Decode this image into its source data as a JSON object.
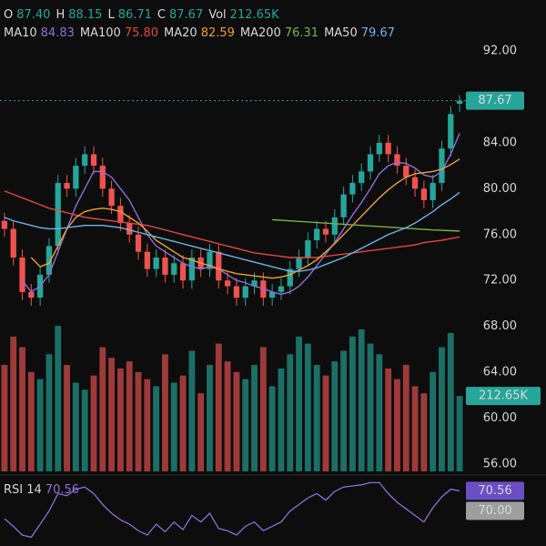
{
  "header": {
    "ohlc": [
      {
        "name": "O",
        "value": "87.40"
      },
      {
        "name": "H",
        "value": "88.15"
      },
      {
        "name": "L",
        "value": "86.71"
      },
      {
        "name": "C",
        "value": "87.67"
      },
      {
        "name": "Vol",
        "value": "212.65K"
      }
    ]
  },
  "chart_data": {
    "type": "candlestick",
    "up_color": "#26a69a",
    "down_color": "#ef5350",
    "volume_up_color": "#1b6f66",
    "volume_down_color": "#9e3a3a",
    "open": [
      77.2,
      76.5,
      74,
      71,
      70.5,
      72.5,
      75,
      80.5,
      80,
      82,
      83,
      82,
      80,
      78.5,
      77,
      76,
      74.5,
      73,
      74,
      72.5,
      73.5,
      72,
      74,
      73,
      74.5,
      72,
      71.5,
      70.5,
      71.5,
      72,
      70.5,
      71,
      71.5,
      73,
      74,
      75.5,
      76.5,
      76,
      77.5,
      79.5,
      80.5,
      81.5,
      83,
      84,
      83,
      82,
      81,
      80,
      79,
      80.5,
      83.5,
      87.4
    ],
    "high": [
      77.9,
      77.2,
      74.7,
      71.7,
      73.2,
      75.7,
      81.2,
      81.2,
      82.7,
      83.7,
      83.7,
      82.7,
      80.7,
      79.2,
      77.7,
      76.7,
      75.2,
      74.7,
      74.7,
      74.2,
      74.2,
      74.7,
      74.7,
      75.2,
      75.2,
      72.7,
      72.2,
      72.2,
      72.7,
      72.7,
      71.7,
      72.2,
      73.7,
      74.7,
      76.2,
      77.2,
      77.2,
      78.2,
      80.2,
      81.2,
      82.2,
      83.7,
      84.7,
      84.7,
      83.7,
      82.7,
      81.7,
      80.7,
      81.2,
      84.2,
      87.2,
      88.15
    ],
    "low": [
      75.8,
      73.3,
      70.3,
      69.8,
      69.8,
      71.8,
      74.3,
      79.3,
      79.3,
      81.3,
      81.3,
      79.3,
      77.8,
      76.3,
      75.3,
      73.8,
      72.3,
      72.3,
      71.8,
      71.8,
      71.3,
      71.3,
      72.3,
      72.3,
      71.3,
      70.8,
      69.8,
      69.8,
      70.8,
      69.8,
      69.8,
      70.3,
      70.8,
      72.3,
      73.3,
      74.8,
      75.3,
      75.3,
      76.8,
      78.8,
      79.8,
      80.8,
      82.3,
      82.3,
      81.3,
      80.3,
      79.3,
      78.3,
      78.3,
      79.8,
      82.8,
      86.71
    ],
    "close": [
      76.5,
      74,
      71,
      70.5,
      72.5,
      75,
      80.5,
      80,
      82,
      83,
      82,
      80,
      78.5,
      77,
      76,
      74.5,
      73,
      74,
      72.5,
      73.5,
      72,
      74,
      73,
      74.5,
      72,
      71.5,
      70.5,
      71.5,
      72,
      70.5,
      71,
      71.5,
      73,
      74,
      75.5,
      76.5,
      76,
      77.5,
      79.5,
      80.5,
      81.5,
      83,
      84,
      83,
      82,
      81,
      80,
      79,
      80.5,
      83.5,
      86.5,
      87.67
    ],
    "volume": [
      300000,
      380000,
      350000,
      280000,
      260000,
      330000,
      410000,
      300000,
      250000,
      230000,
      270000,
      350000,
      320000,
      290000,
      310000,
      280000,
      260000,
      240000,
      330000,
      250000,
      270000,
      340000,
      220000,
      300000,
      360000,
      310000,
      280000,
      260000,
      300000,
      350000,
      240000,
      290000,
      330000,
      380000,
      360000,
      300000,
      270000,
      310000,
      340000,
      380000,
      400000,
      360000,
      330000,
      290000,
      260000,
      300000,
      240000,
      220000,
      280000,
      350000,
      390000,
      212650
    ],
    "last_volume_label": "212.65K",
    "vlim": [
      0,
      500000
    ],
    "ylim": [
      56,
      92
    ],
    "yticks": [
      {
        "value": 92,
        "label": "92.00"
      },
      {
        "value": 84,
        "label": "84.00"
      },
      {
        "value": 80,
        "label": "80.00"
      },
      {
        "value": 76,
        "label": "76.00"
      },
      {
        "value": 72,
        "label": "72.00"
      },
      {
        "value": 68,
        "label": "68.00"
      },
      {
        "value": 64,
        "label": "64.00"
      },
      {
        "value": 60,
        "label": "60.00"
      },
      {
        "value": 56,
        "label": "56.00"
      }
    ],
    "series": [
      {
        "name": "MA10",
        "legend_value": "84.83",
        "color": "#8e6fd8",
        "values": [
          null,
          null,
          72,
          71,
          71.5,
          72.5,
          74.5,
          76.5,
          78.5,
          80,
          81.5,
          81.5,
          81,
          80,
          79,
          77.5,
          76,
          75,
          74.5,
          74,
          73.5,
          73.2,
          73,
          73.2,
          73,
          72.5,
          72,
          71.8,
          71.5,
          71.3,
          71,
          70.8,
          71,
          71.5,
          72.3,
          73.3,
          74.3,
          75.3,
          76.5,
          77.7,
          78.8,
          80,
          81.3,
          82,
          82.3,
          82.2,
          81.8,
          81.2,
          81,
          81.5,
          83,
          84.83
        ]
      },
      {
        "name": "MA100",
        "legend_value": "75.80",
        "color": "#e5463f",
        "values": [
          79.8,
          79.5,
          79.2,
          78.9,
          78.6,
          78.3,
          78.1,
          77.9,
          77.7,
          77.5,
          77.4,
          77.3,
          77.2,
          77.1,
          77,
          76.9,
          76.8,
          76.6,
          76.4,
          76.2,
          76,
          75.8,
          75.6,
          75.4,
          75.2,
          75,
          74.8,
          74.6,
          74.4,
          74.3,
          74.2,
          74.1,
          74,
          74,
          74,
          74,
          74.1,
          74.2,
          74.3,
          74.4,
          74.5,
          74.6,
          74.7,
          74.8,
          74.9,
          75,
          75.1,
          75.3,
          75.4,
          75.5,
          75.65,
          75.8
        ]
      },
      {
        "name": "MA20",
        "legend_value": "82.59",
        "color": "#f0a030",
        "values": [
          null,
          null,
          null,
          74,
          73.2,
          73.5,
          75,
          76.5,
          77.5,
          78,
          78.2,
          78.3,
          78.2,
          78,
          77.5,
          77,
          76.3,
          75.5,
          75,
          74.5,
          74,
          73.8,
          73.5,
          73.3,
          73,
          72.8,
          72.6,
          72.5,
          72.4,
          72.3,
          72.2,
          72.3,
          72.5,
          72.9,
          73.3,
          73.8,
          74.5,
          75.2,
          76,
          76.8,
          77.6,
          78.4,
          79.2,
          79.9,
          80.5,
          81,
          81.3,
          81.4,
          81.5,
          81.7,
          82.1,
          82.59
        ]
      },
      {
        "name": "MA200",
        "legend_value": "76.31",
        "color": "#7cb342",
        "values": [
          null,
          null,
          null,
          null,
          null,
          null,
          null,
          null,
          null,
          null,
          null,
          null,
          null,
          null,
          null,
          null,
          null,
          null,
          null,
          null,
          null,
          null,
          null,
          null,
          null,
          null,
          null,
          null,
          null,
          null,
          77.3,
          77.25,
          77.2,
          77.15,
          77.1,
          77.05,
          77,
          76.95,
          76.9,
          76.85,
          76.8,
          76.75,
          76.7,
          76.65,
          76.6,
          76.55,
          76.5,
          76.45,
          76.4,
          76.37,
          76.34,
          76.31
        ]
      },
      {
        "name": "MA50",
        "legend_value": "79.67",
        "color": "#6cb4e8",
        "values": [
          77.5,
          77.2,
          77,
          76.8,
          76.6,
          76.5,
          76.5,
          76.6,
          76.7,
          76.8,
          76.8,
          76.8,
          76.7,
          76.6,
          76.4,
          76.2,
          76,
          75.8,
          75.6,
          75.4,
          75.2,
          75,
          74.8,
          74.6,
          74.4,
          74.2,
          74,
          73.8,
          73.6,
          73.4,
          73.2,
          73,
          72.8,
          72.8,
          72.9,
          73.1,
          73.4,
          73.7,
          74,
          74.4,
          74.8,
          75.2,
          75.6,
          76,
          76.3,
          76.6,
          77,
          77.5,
          78,
          78.6,
          79.1,
          79.67
        ]
      }
    ],
    "rsi": {
      "label": "RSI 14",
      "color": "#8e6fd8",
      "ylim": [
        20,
        80
      ],
      "level": {
        "value": 70,
        "label": "70.00"
      },
      "values": [
        45,
        38,
        30,
        28,
        40,
        52,
        68,
        66,
        72,
        74,
        68,
        58,
        50,
        44,
        40,
        34,
        30,
        40,
        33,
        42,
        35,
        48,
        42,
        50,
        36,
        34,
        30,
        38,
        42,
        34,
        38,
        42,
        52,
        58,
        64,
        68,
        62,
        70,
        74,
        75,
        76,
        78,
        78,
        68,
        60,
        54,
        48,
        42,
        55,
        65,
        72,
        70.56
      ]
    }
  }
}
